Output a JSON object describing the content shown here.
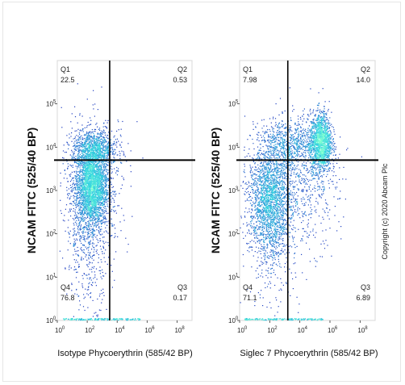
{
  "copyright": "Copyright (c) 2020 Abcam Plc",
  "colors": {
    "frame": "#e6e6e6",
    "gate": "#000000",
    "density_low": "#1a1ab5",
    "density_mid": "#2f86d6",
    "density_high": "#35d6e0",
    "density_peak": "#7fffd0"
  },
  "chart_data": [
    {
      "type": "scatter",
      "id": "isotype",
      "title": "",
      "xlabel": "Isotype Phycoerythrin  (585/42 BP)",
      "ylabel": "NCAM FITC (525/40 BP)",
      "x_scale": "log",
      "y_scale": "log",
      "xlim": [
        0,
        9
      ],
      "ylim": [
        0,
        6
      ],
      "x_ticks": [
        0,
        2,
        4,
        6,
        8
      ],
      "y_ticks": [
        0,
        1,
        2,
        3,
        4,
        5
      ],
      "gate": {
        "x": 3.5,
        "y": 3.7
      },
      "quadrants": [
        {
          "id": "Q1",
          "value": "22.5"
        },
        {
          "id": "Q2",
          "value": "0.53"
        },
        {
          "id": "Q3",
          "value": "0.17"
        },
        {
          "id": "Q4",
          "value": "76.8"
        }
      ],
      "populations": [
        {
          "cx": 2.3,
          "cy": 3.1,
          "sx": 0.55,
          "sy": 0.45,
          "n": 2600
        },
        {
          "cx": 2.5,
          "cy": 3.95,
          "sx": 0.75,
          "sy": 0.22,
          "n": 900
        },
        {
          "cx": 2.1,
          "cy": 2.2,
          "sx": 0.75,
          "sy": 0.9,
          "n": 700
        },
        {
          "cx": 2.6,
          "cy": 3.2,
          "sx": 1.1,
          "sy": 0.8,
          "n": 400
        }
      ]
    },
    {
      "type": "scatter",
      "id": "siglec7",
      "title": "",
      "xlabel": "Siglec 7 Phycoerythrin  (585/42 BP)",
      "ylabel": "NCAM FITC (525/40 BP)",
      "x_scale": "log",
      "y_scale": "log",
      "xlim": [
        0,
        9
      ],
      "ylim": [
        0,
        6
      ],
      "x_ticks": [
        0,
        2,
        4,
        6,
        8
      ],
      "y_ticks": [
        0,
        1,
        2,
        3,
        4,
        5
      ],
      "gate": {
        "x": 3.2,
        "y": 3.7
      },
      "quadrants": [
        {
          "id": "Q1",
          "value": "7.98"
        },
        {
          "id": "Q2",
          "value": "14.0"
        },
        {
          "id": "Q3",
          "value": "6.89"
        },
        {
          "id": "Q4",
          "value": "71.1"
        }
      ],
      "populations": [
        {
          "cx": 2.0,
          "cy": 2.8,
          "sx": 0.7,
          "sy": 0.6,
          "n": 1900
        },
        {
          "cx": 5.4,
          "cy": 4.1,
          "sx": 0.35,
          "sy": 0.35,
          "n": 1500
        },
        {
          "cx": 3.4,
          "cy": 4.05,
          "sx": 1.1,
          "sy": 0.3,
          "n": 800
        },
        {
          "cx": 4.2,
          "cy": 3.0,
          "sx": 1.2,
          "sy": 0.7,
          "n": 500
        },
        {
          "cx": 2.2,
          "cy": 2.0,
          "sx": 0.9,
          "sy": 0.9,
          "n": 400
        }
      ]
    }
  ]
}
